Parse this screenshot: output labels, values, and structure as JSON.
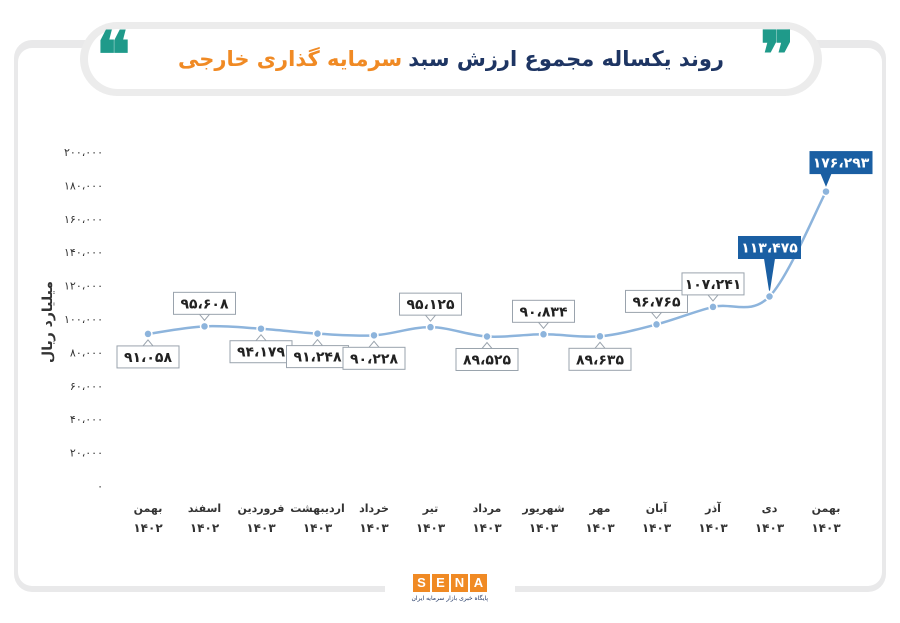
{
  "header": {
    "title_main": "روند یکساله مجموع ارزش سبد",
    "title_accent": "سرمایه گذاری خارجی",
    "quote_left": "❝",
    "quote_right": "❞"
  },
  "brand": {
    "letters": [
      "S",
      "E",
      "N",
      "A"
    ],
    "subtitle": "پایگاه خبری بازار سرمایه ایران"
  },
  "colors": {
    "line": "#8db4dc",
    "label_border": "#9aa3ad",
    "highlight": "#1a5fa3",
    "axis_text": "#333333"
  },
  "chart_data": {
    "type": "line",
    "ylabel": "میلیارد ریال",
    "xlabel": "",
    "title": "روند یکساله مجموع ارزش سبد سرمایه گذاری خارجی",
    "ylim": [
      0,
      200000
    ],
    "yticks": [
      0,
      20000,
      40000,
      60000,
      80000,
      100000,
      120000,
      140000,
      160000,
      180000,
      200000
    ],
    "ytick_labels": [
      "۰",
      "۲۰،۰۰۰",
      "۴۰،۰۰۰",
      "۶۰،۰۰۰",
      "۸۰،۰۰۰",
      "۱۰۰،۰۰۰",
      "۱۲۰،۰۰۰",
      "۱۴۰،۰۰۰",
      "۱۶۰،۰۰۰",
      "۱۸۰،۰۰۰",
      "۲۰۰،۰۰۰"
    ],
    "categories": [
      {
        "month": "بهمن",
        "year": "۱۴۰۲"
      },
      {
        "month": "اسفند",
        "year": "۱۴۰۲"
      },
      {
        "month": "فروردین",
        "year": "۱۴۰۳"
      },
      {
        "month": "اردیبهشت",
        "year": "۱۴۰۳"
      },
      {
        "month": "خرداد",
        "year": "۱۴۰۳"
      },
      {
        "month": "تیر",
        "year": "۱۴۰۳"
      },
      {
        "month": "مرداد",
        "year": "۱۴۰۳"
      },
      {
        "month": "شهریور",
        "year": "۱۴۰۳"
      },
      {
        "month": "مهر",
        "year": "۱۴۰۳"
      },
      {
        "month": "آبان",
        "year": "۱۴۰۳"
      },
      {
        "month": "آذر",
        "year": "۱۴۰۳"
      },
      {
        "month": "دی",
        "year": "۱۴۰۳"
      },
      {
        "month": "بهمن",
        "year": "۱۴۰۳"
      }
    ],
    "values": [
      91058,
      95608,
      94179,
      91248,
      90228,
      95125,
      89525,
      90834,
      89635,
      96765,
      107241,
      113475,
      176293
    ],
    "labels": [
      "۹۱،۰۵۸",
      "۹۵،۶۰۸",
      "۹۴،۱۷۹",
      "۹۱،۲۴۸",
      "۹۰،۲۲۸",
      "۹۵،۱۲۵",
      "۸۹،۵۲۵",
      "۹۰،۸۳۴",
      "۸۹،۶۳۵",
      "۹۶،۷۶۵",
      "۱۰۷،۲۴۱",
      "۱۱۳،۴۷۵",
      "۱۷۶،۲۹۳"
    ],
    "label_position": [
      "below",
      "above",
      "below",
      "below",
      "below",
      "above",
      "below",
      "above",
      "below",
      "above",
      "above",
      "above",
      "above"
    ],
    "highlighted": [
      false,
      false,
      false,
      false,
      false,
      false,
      false,
      false,
      false,
      false,
      false,
      true,
      true
    ],
    "grid": false
  }
}
